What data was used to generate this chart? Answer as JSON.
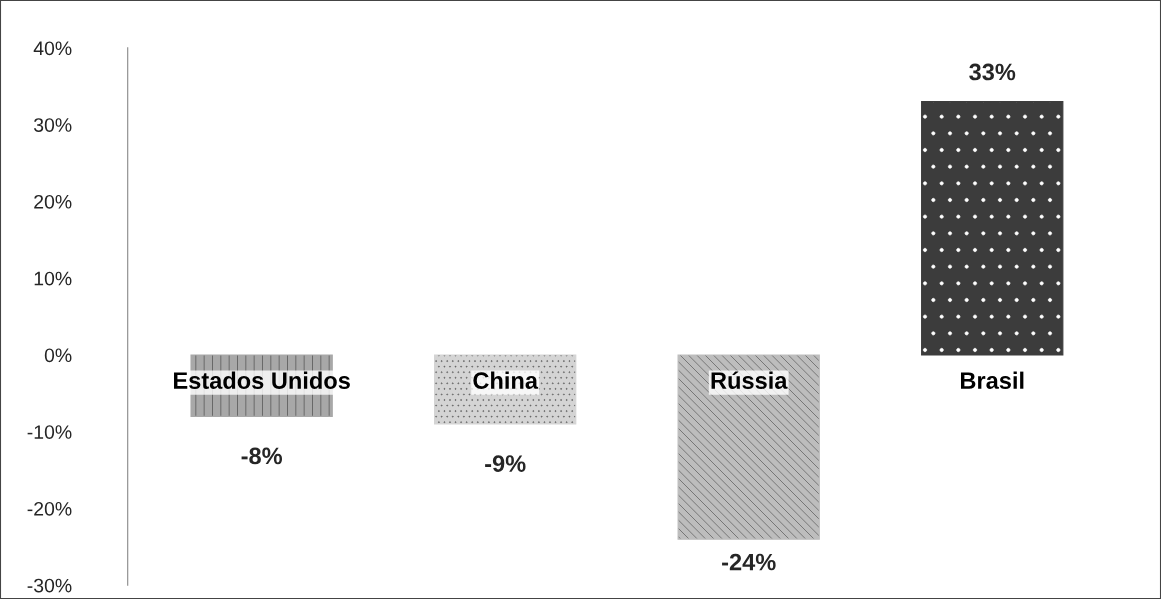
{
  "chart_data": {
    "type": "bar",
    "categories": [
      "Estados Unidos",
      "China",
      "Rússia",
      "Brasil"
    ],
    "values": [
      -8,
      -9,
      -24,
      33
    ],
    "colors": [
      "#a8a8a8",
      "#d4d4d4",
      "#bdbdbd",
      "#3c3c3c"
    ],
    "value_labels": [
      "-8%",
      "-9%",
      "-24%",
      "33%"
    ],
    "ylim": [
      -30,
      40
    ],
    "yticks": [
      {
        "value": -30,
        "label": "-30%"
      },
      {
        "value": -20,
        "label": "-20%"
      },
      {
        "value": -10,
        "label": "-10%"
      },
      {
        "value": 0,
        "label": "0%"
      },
      {
        "value": 10,
        "label": "10%"
      },
      {
        "value": 20,
        "label": "20%"
      },
      {
        "value": 30,
        "label": "30%"
      },
      {
        "value": 40,
        "label": "40%"
      }
    ],
    "grid": false,
    "legend": false
  }
}
